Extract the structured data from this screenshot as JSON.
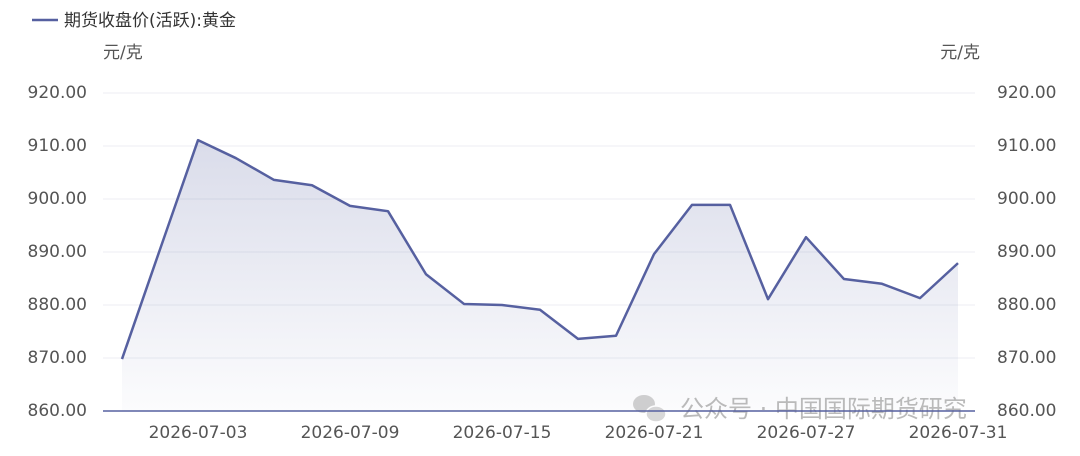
{
  "chart_data": {
    "type": "line",
    "legend_title": "期货收盘价(活跃):黄金",
    "y_unit": "元/克",
    "y2_unit": "元/克",
    "watermark": "公众号 · 中国国际期货研究",
    "categories": [
      null,
      null,
      "2026-07-03",
      null,
      null,
      null,
      "2026-07-09",
      null,
      null,
      null,
      "2026-07-15",
      null,
      null,
      null,
      "2026-07-21",
      null,
      null,
      null,
      "2026-07-27",
      null,
      null,
      null,
      "2026-07-31"
    ],
    "series": [
      {
        "name": "期货收盘价(活跃):黄金",
        "color": "#5660a0",
        "values": [
          869.8,
          890.5,
          911.1,
          907.7,
          903.6,
          902.6,
          898.7,
          897.7,
          885.8,
          880.2,
          880.0,
          879.1,
          873.6,
          874.2,
          889.6,
          898.9,
          898.9,
          881.1,
          892.8,
          884.9,
          884.0,
          881.3,
          887.9
        ]
      }
    ],
    "ylim": [
      860,
      920
    ],
    "yticks": [
      {
        "value": 860,
        "label": "860.00"
      },
      {
        "value": 870,
        "label": "870.00"
      },
      {
        "value": 880,
        "label": "880.00"
      },
      {
        "value": 890,
        "label": "890.00"
      },
      {
        "value": 900,
        "label": "900.00"
      },
      {
        "value": 910,
        "label": "910.00"
      },
      {
        "value": 920,
        "label": "920.00"
      }
    ],
    "y2lim": [
      860,
      920
    ],
    "y2ticks": [
      {
        "value": 860,
        "label": "860.00"
      },
      {
        "value": 870,
        "label": "870.00"
      },
      {
        "value": 880,
        "label": "880.00"
      },
      {
        "value": 890,
        "label": "890.00"
      },
      {
        "value": 900,
        "label": "900.00"
      },
      {
        "value": 910,
        "label": "910.00"
      },
      {
        "value": 920,
        "label": "920.00"
      }
    ],
    "grid": true,
    "area": true
  }
}
